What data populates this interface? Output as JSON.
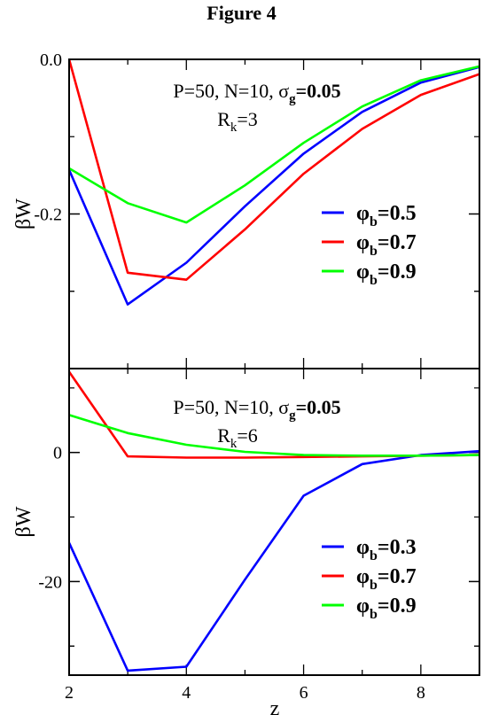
{
  "figure_title": "Figure 4",
  "x_axis": {
    "label": "z",
    "ticks": [
      "2",
      "4",
      "6",
      "8"
    ]
  },
  "chart_data": [
    {
      "type": "line",
      "title": "",
      "xlabel": "z",
      "ylabel": "βW",
      "xlim": [
        2,
        9
      ],
      "ylim": [
        -0.4,
        0.0
      ],
      "yticks": [
        0.0,
        -0.2
      ],
      "ytick_labels": [
        "0.0",
        "-0.2"
      ],
      "annotation": {
        "line1": "P=50, N=10, σ",
        "line1_sub": "g",
        "line1_bold": "=0.05",
        "line2": "R",
        "line2_sub": "k",
        "line2_end": "=3"
      },
      "x": [
        2,
        3,
        4,
        5,
        6,
        7,
        8,
        9
      ],
      "series": [
        {
          "name": "φb=0.5",
          "symbol": "φ",
          "sub": "b",
          "value_label": "=0.5",
          "color": "#0000ff",
          "values": [
            -0.143,
            -0.317,
            -0.263,
            -0.19,
            -0.122,
            -0.068,
            -0.03,
            -0.01
          ]
        },
        {
          "name": "φb=0.7",
          "symbol": "φ",
          "sub": "b",
          "value_label": "=0.7",
          "color": "#ff0000",
          "values": [
            0.0,
            -0.276,
            -0.285,
            -0.22,
            -0.148,
            -0.09,
            -0.046,
            -0.019
          ]
        },
        {
          "name": "φb=0.9",
          "symbol": "φ",
          "sub": "b",
          "value_label": "=0.9",
          "color": "#00ff00",
          "values": [
            -0.141,
            -0.186,
            -0.211,
            -0.163,
            -0.108,
            -0.061,
            -0.027,
            -0.009
          ]
        }
      ],
      "legend": "right"
    },
    {
      "type": "line",
      "title": "",
      "xlabel": "z",
      "ylabel": "βW",
      "xlim": [
        2,
        9
      ],
      "ylim": [
        -34.5,
        13
      ],
      "yticks": [
        0,
        -20
      ],
      "ytick_labels": [
        "0",
        "-20"
      ],
      "annotation": {
        "line1": "P=50, N=10, σ",
        "line1_sub": "g",
        "line1_bold": "=0.05",
        "line2": "R",
        "line2_sub": "k",
        "line2_end": "=6"
      },
      "x": [
        2,
        3,
        4,
        5,
        6,
        7,
        8,
        9
      ],
      "series": [
        {
          "name": "φb=0.3",
          "symbol": "φ",
          "sub": "b",
          "value_label": "=0.3",
          "color": "#0000ff",
          "values": [
            -14.0,
            -33.8,
            -33.2,
            -19.7,
            -6.7,
            -1.8,
            -0.4,
            0.2
          ]
        },
        {
          "name": "φb=0.7",
          "symbol": "φ",
          "sub": "b",
          "value_label": "=0.7",
          "color": "#ff0000",
          "values": [
            12.5,
            -0.6,
            -0.8,
            -0.8,
            -0.7,
            -0.6,
            -0.5,
            -0.4
          ]
        },
        {
          "name": "φb=0.9",
          "symbol": "φ",
          "sub": "b",
          "value_label": "=0.9",
          "color": "#00ff00",
          "values": [
            5.8,
            3.0,
            1.2,
            0.1,
            -0.4,
            -0.5,
            -0.5,
            -0.4
          ]
        }
      ],
      "legend": "right"
    }
  ]
}
